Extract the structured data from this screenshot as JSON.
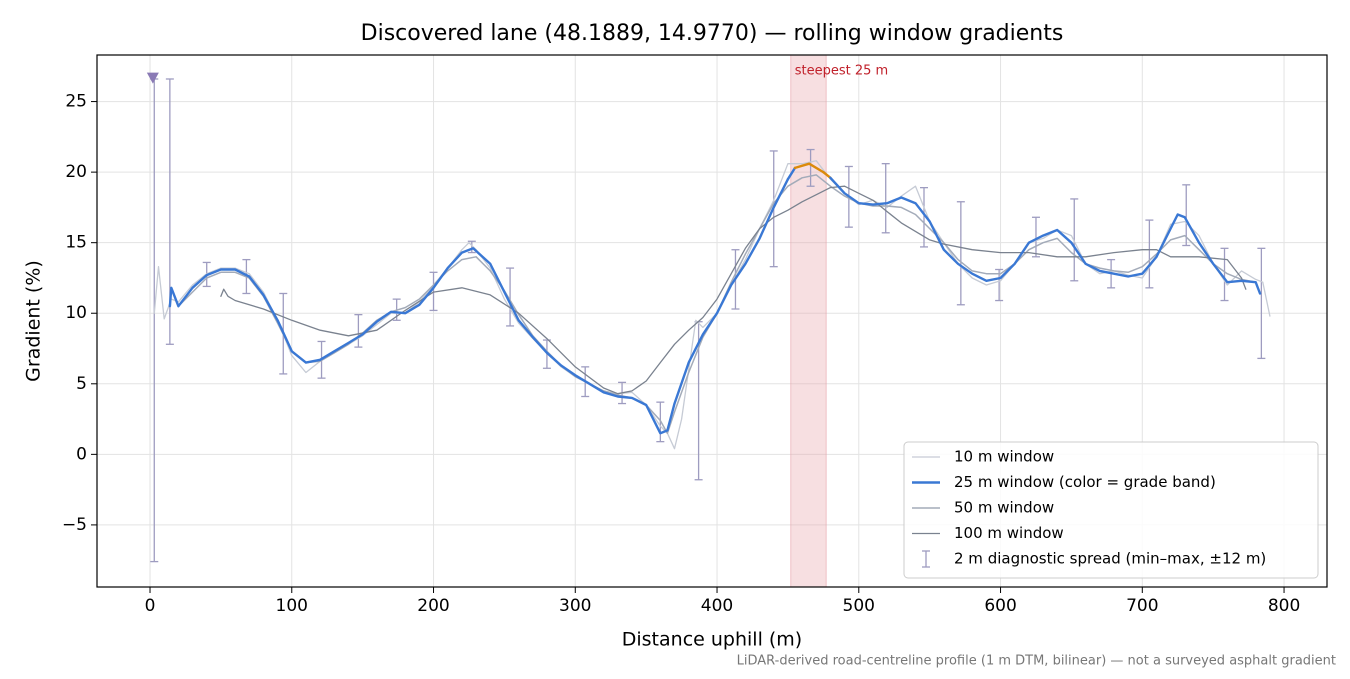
{
  "chart_data": {
    "type": "line",
    "title": "Discovered lane (48.1889, 14.9770) — rolling window gradients",
    "x_label": "Distance uphill (m)",
    "y_label": "Gradient (%)",
    "footnote": "LiDAR-derived road-centreline profile (1 m DTM, bilinear) — not a surveyed asphalt gradient",
    "xlim": [
      -37.4,
      830.3
    ],
    "ylim": [
      -9.4,
      28.3
    ],
    "xticks": [
      0,
      100,
      200,
      300,
      400,
      500,
      600,
      700,
      800
    ],
    "yticks": [
      {
        "value": -5,
        "label": "−5"
      },
      0,
      5,
      10,
      15,
      20,
      25
    ],
    "grid": true,
    "legend": "lower right",
    "span": {
      "xlim": [
        452,
        477
      ],
      "label": "steepest 25 m",
      "color": "#e8a3aa",
      "label_color": "#c0202a",
      "highlight_color": "#db8a0a"
    },
    "marker": {
      "x": 2,
      "y": 26.7,
      "color": "#8a7ab5"
    },
    "series": [
      {
        "name": "10 m window",
        "color": "#c6cbd5",
        "width": 1.3,
        "x": [
          3,
          6,
          10,
          15,
          20,
          30,
          40,
          50,
          60,
          70,
          80,
          90,
          100,
          110,
          120,
          130,
          140,
          150,
          160,
          170,
          180,
          190,
          200,
          210,
          220,
          225,
          230,
          240,
          250,
          260,
          270,
          280,
          290,
          300,
          310,
          320,
          330,
          340,
          350,
          360,
          365,
          370,
          375,
          380,
          385,
          390,
          400,
          410,
          420,
          430,
          440,
          450,
          460,
          470,
          480,
          490,
          500,
          510,
          520,
          530,
          540,
          550,
          560,
          570,
          580,
          590,
          600,
          610,
          620,
          630,
          640,
          650,
          660,
          670,
          680,
          690,
          700,
          710,
          720,
          730,
          740,
          750,
          760,
          770,
          780,
          785,
          790
        ],
        "values": [
          10,
          13.3,
          9.6,
          11,
          10.8,
          12,
          12.8,
          13.2,
          13.2,
          12.8,
          11.5,
          9.5,
          7,
          5.8,
          6.6,
          7.2,
          7.8,
          8.4,
          9.2,
          10,
          10,
          10.8,
          12,
          13.2,
          14.5,
          15,
          14.5,
          13.2,
          11,
          9.3,
          8.2,
          7.2,
          6.2,
          5.5,
          5,
          4.5,
          4.3,
          4.4,
          3.5,
          2,
          1.5,
          0.4,
          2.5,
          6,
          9.5,
          9,
          10,
          12,
          13.8,
          16,
          18,
          20.6,
          20.6,
          20.8,
          19.5,
          18.5,
          17.7,
          18,
          17.5,
          18.3,
          19,
          16.5,
          15,
          13.5,
          12.5,
          12,
          12.3,
          13.5,
          15,
          15.3,
          15.9,
          15.5,
          13.5,
          12.8,
          13,
          12.7,
          12.5,
          14,
          16.3,
          16.5,
          15.5,
          13.5,
          12,
          13,
          12.4,
          12.2,
          9.8
        ]
      },
      {
        "name": "25 m window (color = grade band)",
        "color": "#3a78d4",
        "width": 2.4,
        "x": [
          14,
          15,
          20,
          30,
          40,
          50,
          60,
          70,
          80,
          90,
          100,
          110,
          120,
          130,
          140,
          150,
          160,
          170,
          180,
          190,
          200,
          210,
          220,
          228,
          240,
          250,
          260,
          270,
          280,
          290,
          300,
          310,
          320,
          330,
          340,
          350,
          360,
          365,
          370,
          380,
          390,
          400,
          410,
          420,
          430,
          440,
          450,
          455,
          465,
          475,
          480,
          490,
          500,
          510,
          520,
          530,
          540,
          550,
          560,
          570,
          580,
          590,
          600,
          610,
          620,
          630,
          640,
          650,
          660,
          670,
          680,
          690,
          700,
          710,
          720,
          725,
          730,
          740,
          750,
          760,
          770,
          780,
          783
        ],
        "values": [
          10.5,
          11.8,
          10.5,
          11.8,
          12.7,
          13.1,
          13.1,
          12.6,
          11.3,
          9.5,
          7.3,
          6.5,
          6.7,
          7.3,
          7.9,
          8.5,
          9.4,
          10.1,
          10,
          10.6,
          11.8,
          13.2,
          14.3,
          14.6,
          13.5,
          11.5,
          9.5,
          8.3,
          7.2,
          6.3,
          5.6,
          5,
          4.4,
          4.1,
          4,
          3.5,
          1.5,
          1.7,
          3.6,
          6.5,
          8.5,
          10,
          12,
          13.5,
          15.3,
          17.5,
          19.5,
          20.3,
          20.6,
          20,
          19.6,
          18.5,
          17.8,
          17.7,
          17.8,
          18.2,
          17.8,
          16.5,
          14.5,
          13.5,
          12.8,
          12.3,
          12.5,
          13.5,
          15,
          15.5,
          15.9,
          15,
          13.5,
          13,
          12.8,
          12.6,
          12.8,
          14,
          16,
          17,
          16.8,
          15,
          13.5,
          12.2,
          12.3,
          12.2,
          11.4
        ]
      },
      {
        "name": "50 m window",
        "color": "#a3abb9",
        "width": 1.5,
        "x": [
          20,
          30,
          40,
          50,
          60,
          70,
          80,
          90,
          100,
          110,
          120,
          130,
          140,
          150,
          160,
          170,
          180,
          190,
          200,
          210,
          220,
          230,
          240,
          250,
          260,
          270,
          280,
          290,
          300,
          310,
          320,
          330,
          340,
          350,
          360,
          365,
          370,
          380,
          390,
          400,
          410,
          420,
          430,
          440,
          450,
          460,
          470,
          480,
          490,
          500,
          510,
          520,
          530,
          540,
          550,
          560,
          570,
          580,
          590,
          600,
          610,
          620,
          630,
          640,
          650,
          660,
          670,
          680,
          690,
          700,
          710,
          720,
          730,
          740,
          750,
          760,
          770,
          780
        ],
        "values": [
          10.5,
          11.5,
          12.5,
          12.9,
          12.9,
          12.5,
          11.2,
          9.3,
          7.3,
          6.5,
          6.6,
          7.2,
          7.8,
          8.6,
          9.5,
          10.1,
          10.4,
          11,
          12,
          13,
          13.8,
          14,
          13,
          11.6,
          9.9,
          8.4,
          7.3,
          6.3,
          5.5,
          5,
          4.5,
          4.2,
          4,
          3.5,
          2.4,
          1.5,
          3,
          5.8,
          8.3,
          10,
          12.2,
          14.2,
          16,
          17.8,
          19,
          19.6,
          19.8,
          19,
          18.3,
          17.8,
          17.6,
          17.6,
          17.5,
          17,
          16,
          15,
          13.8,
          13,
          12.8,
          12.8,
          13.5,
          14.5,
          15,
          15.3,
          14.3,
          13.5,
          13.2,
          13,
          12.9,
          13.3,
          14.2,
          15.2,
          15.5,
          14.5,
          13.5,
          12.8,
          12.4,
          12.2
        ]
      },
      {
        "name": "100 m window",
        "color": "#7a828f",
        "width": 1.3,
        "x": [
          50,
          52,
          55,
          60,
          80,
          100,
          120,
          140,
          160,
          180,
          200,
          220,
          240,
          260,
          280,
          300,
          320,
          330,
          340,
          350,
          360,
          370,
          380,
          390,
          400,
          410,
          420,
          430,
          440,
          450,
          460,
          470,
          480,
          490,
          500,
          510,
          520,
          530,
          540,
          550,
          560,
          580,
          600,
          620,
          640,
          660,
          680,
          700,
          710,
          720,
          740,
          760,
          770,
          773
        ],
        "values": [
          11.2,
          11.7,
          11.2,
          10.9,
          10.3,
          9.5,
          8.8,
          8.4,
          8.8,
          10.2,
          11.5,
          11.8,
          11.3,
          10,
          8.2,
          6.2,
          4.7,
          4.3,
          4.5,
          5.2,
          6.5,
          7.8,
          8.8,
          9.7,
          11,
          12.8,
          14.6,
          16,
          16.8,
          17.3,
          17.9,
          18.4,
          18.9,
          19,
          18.5,
          18,
          17.2,
          16.4,
          15.8,
          15.2,
          14.9,
          14.5,
          14.3,
          14.3,
          14,
          14,
          14.3,
          14.5,
          14.5,
          14,
          14,
          13.8,
          12.5,
          11.7
        ]
      }
    ],
    "errorbars": {
      "name": "2 m diagnostic spread (min–max, ±12 m)",
      "color": "#9e9cc0",
      "x": [
        3,
        14,
        40,
        68,
        94,
        121,
        147,
        174,
        200,
        227,
        254,
        280,
        307,
        333,
        360,
        387,
        413,
        440,
        466,
        493,
        519,
        546,
        572,
        599,
        625,
        652,
        678,
        705,
        731,
        758,
        784
      ],
      "lower": [
        -7.6,
        7.8,
        11.9,
        11.4,
        5.7,
        5.4,
        7.6,
        9.5,
        10.2,
        14.3,
        9.1,
        6.1,
        4.1,
        3.6,
        0.9,
        -1.8,
        10.3,
        13.3,
        19,
        16.1,
        15.7,
        14.7,
        10.6,
        10.9,
        14,
        12.3,
        11.8,
        11.8,
        14.8,
        10.9,
        6.8
      ],
      "upper": [
        26.6,
        26.6,
        13.6,
        13.8,
        11.4,
        8,
        9.9,
        11,
        12.9,
        15.1,
        13.2,
        8.1,
        6.2,
        5.1,
        3.7,
        9.4,
        14.5,
        21.5,
        21.6,
        20.4,
        20.6,
        18.9,
        17.9,
        13.1,
        16.8,
        18.1,
        13.8,
        16.6,
        19.1,
        14.6,
        14.6
      ]
    }
  }
}
